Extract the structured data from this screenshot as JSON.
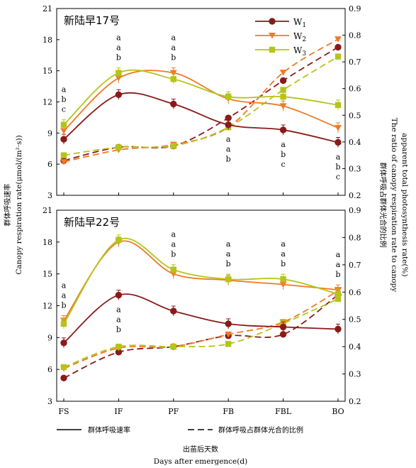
{
  "chart_data": {
    "type": "line",
    "x_categories": [
      "FS",
      "IF",
      "PF",
      "FB",
      "FBL",
      "BO"
    ],
    "xlabel_cn": "出苗后天数",
    "xlabel_en": "Days after emergence(d)",
    "ylabel_left_cn": "群体呼吸速率",
    "ylabel_left_en": "Canopy respiration rate(μmol/(m²·s))",
    "ylabel_right_cn": "群体呼吸占群体光合的比例",
    "ylabel_right_en_1": "The ratio of canopy respiration rate to canopy",
    "ylabel_right_en_2": "apparent total photosynthesis rate(%)",
    "left_ylim": [
      3,
      21
    ],
    "left_ticks": [
      "3",
      "6",
      "9",
      "12",
      "15",
      "18",
      "21"
    ],
    "right_ylim": [
      0.2,
      0.9
    ],
    "right_ticks": [
      "0.2",
      "0.3",
      "0.4",
      "0.5",
      "0.6",
      "0.7",
      "0.8",
      "0.9"
    ],
    "legend": [
      {
        "label": "W",
        "sub": "1",
        "color": "#8b1a1a",
        "marker": "circle"
      },
      {
        "label": "W",
        "sub": "2",
        "color": "#f07a26",
        "marker": "triangle-down"
      },
      {
        "label": "W",
        "sub": "3",
        "color": "#b5c419",
        "marker": "square"
      }
    ],
    "bottom_legend": {
      "solid": "群体呼吸速率",
      "dashed": "群体呼吸占群体光合的比例"
    },
    "panels": [
      {
        "title": "新陆早17号",
        "respiration": [
          {
            "series": "W1",
            "values": [
              8.4,
              12.7,
              11.8,
              9.8,
              9.3,
              8.1
            ]
          },
          {
            "series": "W2",
            "values": [
              9.2,
              14.3,
              14.8,
              12.3,
              11.6,
              9.5
            ]
          },
          {
            "series": "W3",
            "values": [
              9.8,
              14.8,
              14.2,
              12.5,
              12.5,
              11.7
            ]
          }
        ],
        "ratio": [
          {
            "series": "W1",
            "values": [
              0.33,
              0.38,
              0.385,
              0.49,
              0.63,
              0.755
            ]
          },
          {
            "series": "W2",
            "values": [
              0.325,
              0.37,
              0.39,
              0.455,
              0.66,
              0.785
            ]
          },
          {
            "series": "W3",
            "values": [
              0.35,
              0.38,
              0.385,
              0.455,
              0.595,
              0.72
            ]
          }
        ],
        "significance": [
          {
            "x": "FS",
            "labels": [
              "a",
              "b",
              "c"
            ],
            "pos": "above"
          },
          {
            "x": "IF",
            "labels": [
              "a",
              "a",
              "b"
            ],
            "pos": "above"
          },
          {
            "x": "PF",
            "labels": [
              "a",
              "a",
              "b"
            ],
            "pos": "above"
          },
          {
            "x": "FB",
            "labels": [
              "a",
              "a",
              "b"
            ],
            "pos": "below"
          },
          {
            "x": "FBL",
            "labels": [
              "a",
              "b",
              "c"
            ],
            "pos": "below"
          },
          {
            "x": "BO",
            "labels": [
              "a",
              "b",
              "c"
            ],
            "pos": "below"
          }
        ]
      },
      {
        "title": "新陆早22号",
        "respiration": [
          {
            "series": "W1",
            "values": [
              8.5,
              13.0,
              11.5,
              10.3,
              10.0,
              9.8
            ]
          },
          {
            "series": "W2",
            "values": [
              10.6,
              18.0,
              15.0,
              14.4,
              14.0,
              13.5
            ]
          },
          {
            "series": "W3",
            "values": [
              10.3,
              18.2,
              15.4,
              14.5,
              14.5,
              13.1
            ]
          }
        ],
        "ratio": [
          {
            "series": "W1",
            "values": [
              0.285,
              0.38,
              0.4,
              0.44,
              0.445,
              0.59
            ]
          },
          {
            "series": "W2",
            "values": [
              0.32,
              0.395,
              0.4,
              0.445,
              0.49,
              0.605
            ]
          },
          {
            "series": "W3",
            "values": [
              0.325,
              0.4,
              0.4,
              0.41,
              0.485,
              0.575
            ]
          }
        ],
        "significance": [
          {
            "x": "FS",
            "labels": [
              "a",
              "a",
              "b"
            ],
            "pos": "above"
          },
          {
            "x": "IF",
            "labels": [
              "a",
              "a",
              "b"
            ],
            "pos": "below"
          },
          {
            "x": "PF",
            "labels": [
              "a",
              "a",
              "b"
            ],
            "pos": "above"
          },
          {
            "x": "FB",
            "labels": [
              "a",
              "a",
              "b"
            ],
            "pos": "above"
          },
          {
            "x": "FBL",
            "labels": [
              "a",
              "a",
              "b"
            ],
            "pos": "above"
          },
          {
            "x": "BO",
            "labels": [
              "a",
              "a",
              "b"
            ],
            "pos": "above"
          }
        ]
      }
    ]
  }
}
